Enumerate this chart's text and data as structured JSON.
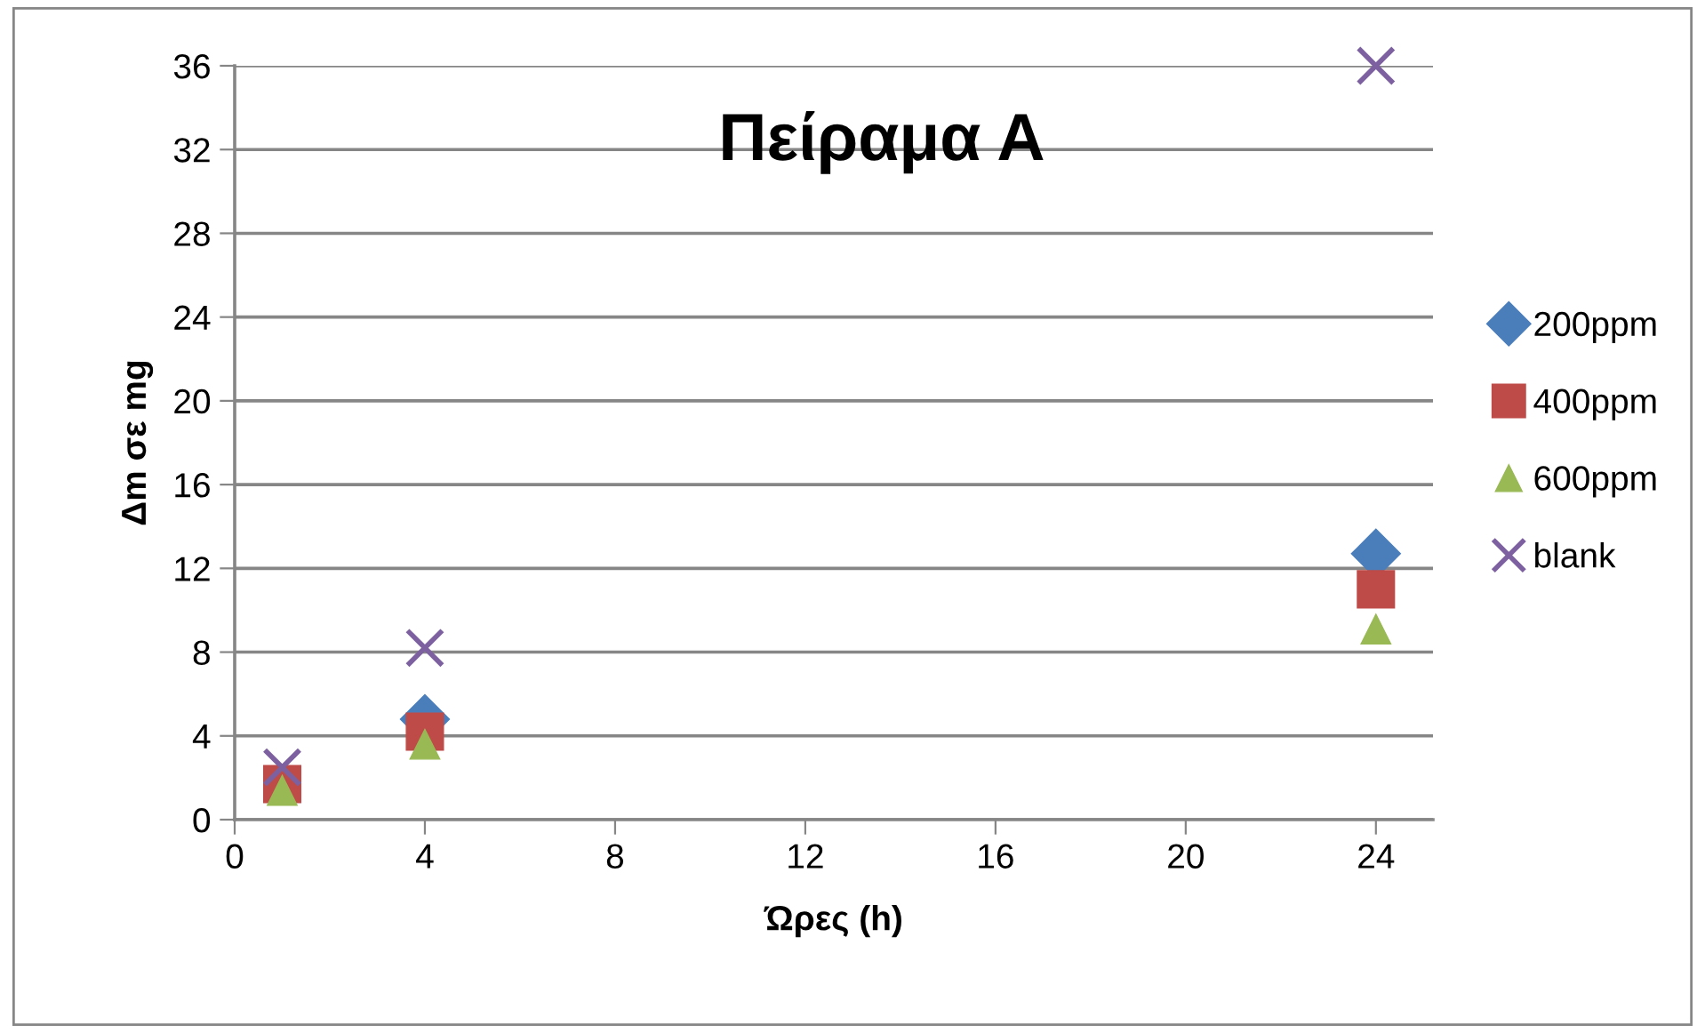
{
  "chart_data": {
    "type": "scatter",
    "title": "Πείραμα Α",
    "xlabel": "Ώρες (h)",
    "ylabel": "Δm σε mg",
    "x": [
      1,
      4,
      24
    ],
    "series": [
      {
        "name": "200ppm",
        "color": "#4a7ebb",
        "marker": "diamond",
        "values": [
          null,
          4.8,
          12.7
        ]
      },
      {
        "name": "400ppm",
        "color": "#be4b48",
        "marker": "square",
        "values": [
          1.7,
          4.2,
          11.0
        ]
      },
      {
        "name": "600ppm",
        "color": "#98b954",
        "marker": "triangle",
        "values": [
          1.4,
          3.6,
          9.1
        ]
      },
      {
        "name": "blank",
        "color": "#7d60a0",
        "marker": "cross",
        "values": [
          2.5,
          8.2,
          36
        ]
      }
    ],
    "xlim": [
      0,
      25.2
    ],
    "xticks": [
      0,
      4,
      8,
      12,
      16,
      20,
      24
    ],
    "ylim": [
      0,
      36
    ],
    "yticks": [
      0,
      4,
      8,
      12,
      16,
      20,
      24,
      28,
      32,
      36
    ],
    "grid": "y",
    "legend": "right"
  }
}
